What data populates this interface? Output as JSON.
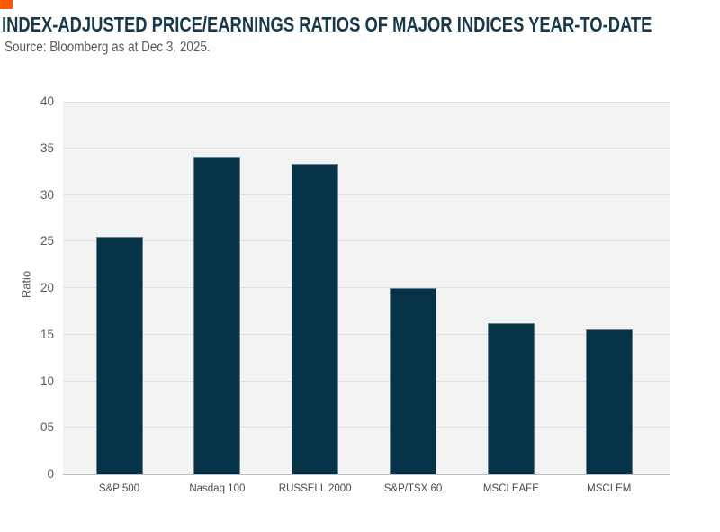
{
  "page": {
    "accent_color": "#FF5A00",
    "background_color": "#FFFFFF"
  },
  "header": {
    "title": "INDEX-ADJUSTED PRICE/EARNINGS RATIOS OF MAJOR INDICES YEAR-TO-DATE",
    "source": "Source: Bloomberg as at Dec 3, 2025.",
    "title_color": "#17394B"
  },
  "chart_data": {
    "type": "bar",
    "title": "INDEX-ADJUSTED PRICE/EARNINGS RATIOS OF MAJOR INDICES YEAR-TO-DATE",
    "subtitle": "Source: Bloomberg as at Dec 3, 2025.",
    "categories": [
      "S&P 500",
      "Nasdaq 100",
      "RUSSELL 2000",
      "S&P/TSX 60",
      "MSCI EAFE",
      "MSCI EM"
    ],
    "values": [
      25.5,
      34.1,
      33.3,
      20.0,
      16.2,
      15.6
    ],
    "xlabel": "",
    "ylabel": "Ratio",
    "ylim": [
      0,
      40
    ],
    "yticks": [
      {
        "label": "0",
        "value": 0
      },
      {
        "label": "05",
        "value": 5
      },
      {
        "label": "10",
        "value": 10
      },
      {
        "label": "15",
        "value": 15
      },
      {
        "label": "20",
        "value": 20
      },
      {
        "label": "25",
        "value": 25
      },
      {
        "label": "30",
        "value": 30
      },
      {
        "label": "35",
        "value": 35
      },
      {
        "label": "40",
        "value": 40
      }
    ],
    "grid": true,
    "legend_position": "none",
    "bar_color": "#063347",
    "plot_background_color": "#F3F3F3",
    "gridline_color": "#E0E0E0",
    "axis_line_color": "#BDBDBD",
    "tick_label_color": "#595959"
  }
}
